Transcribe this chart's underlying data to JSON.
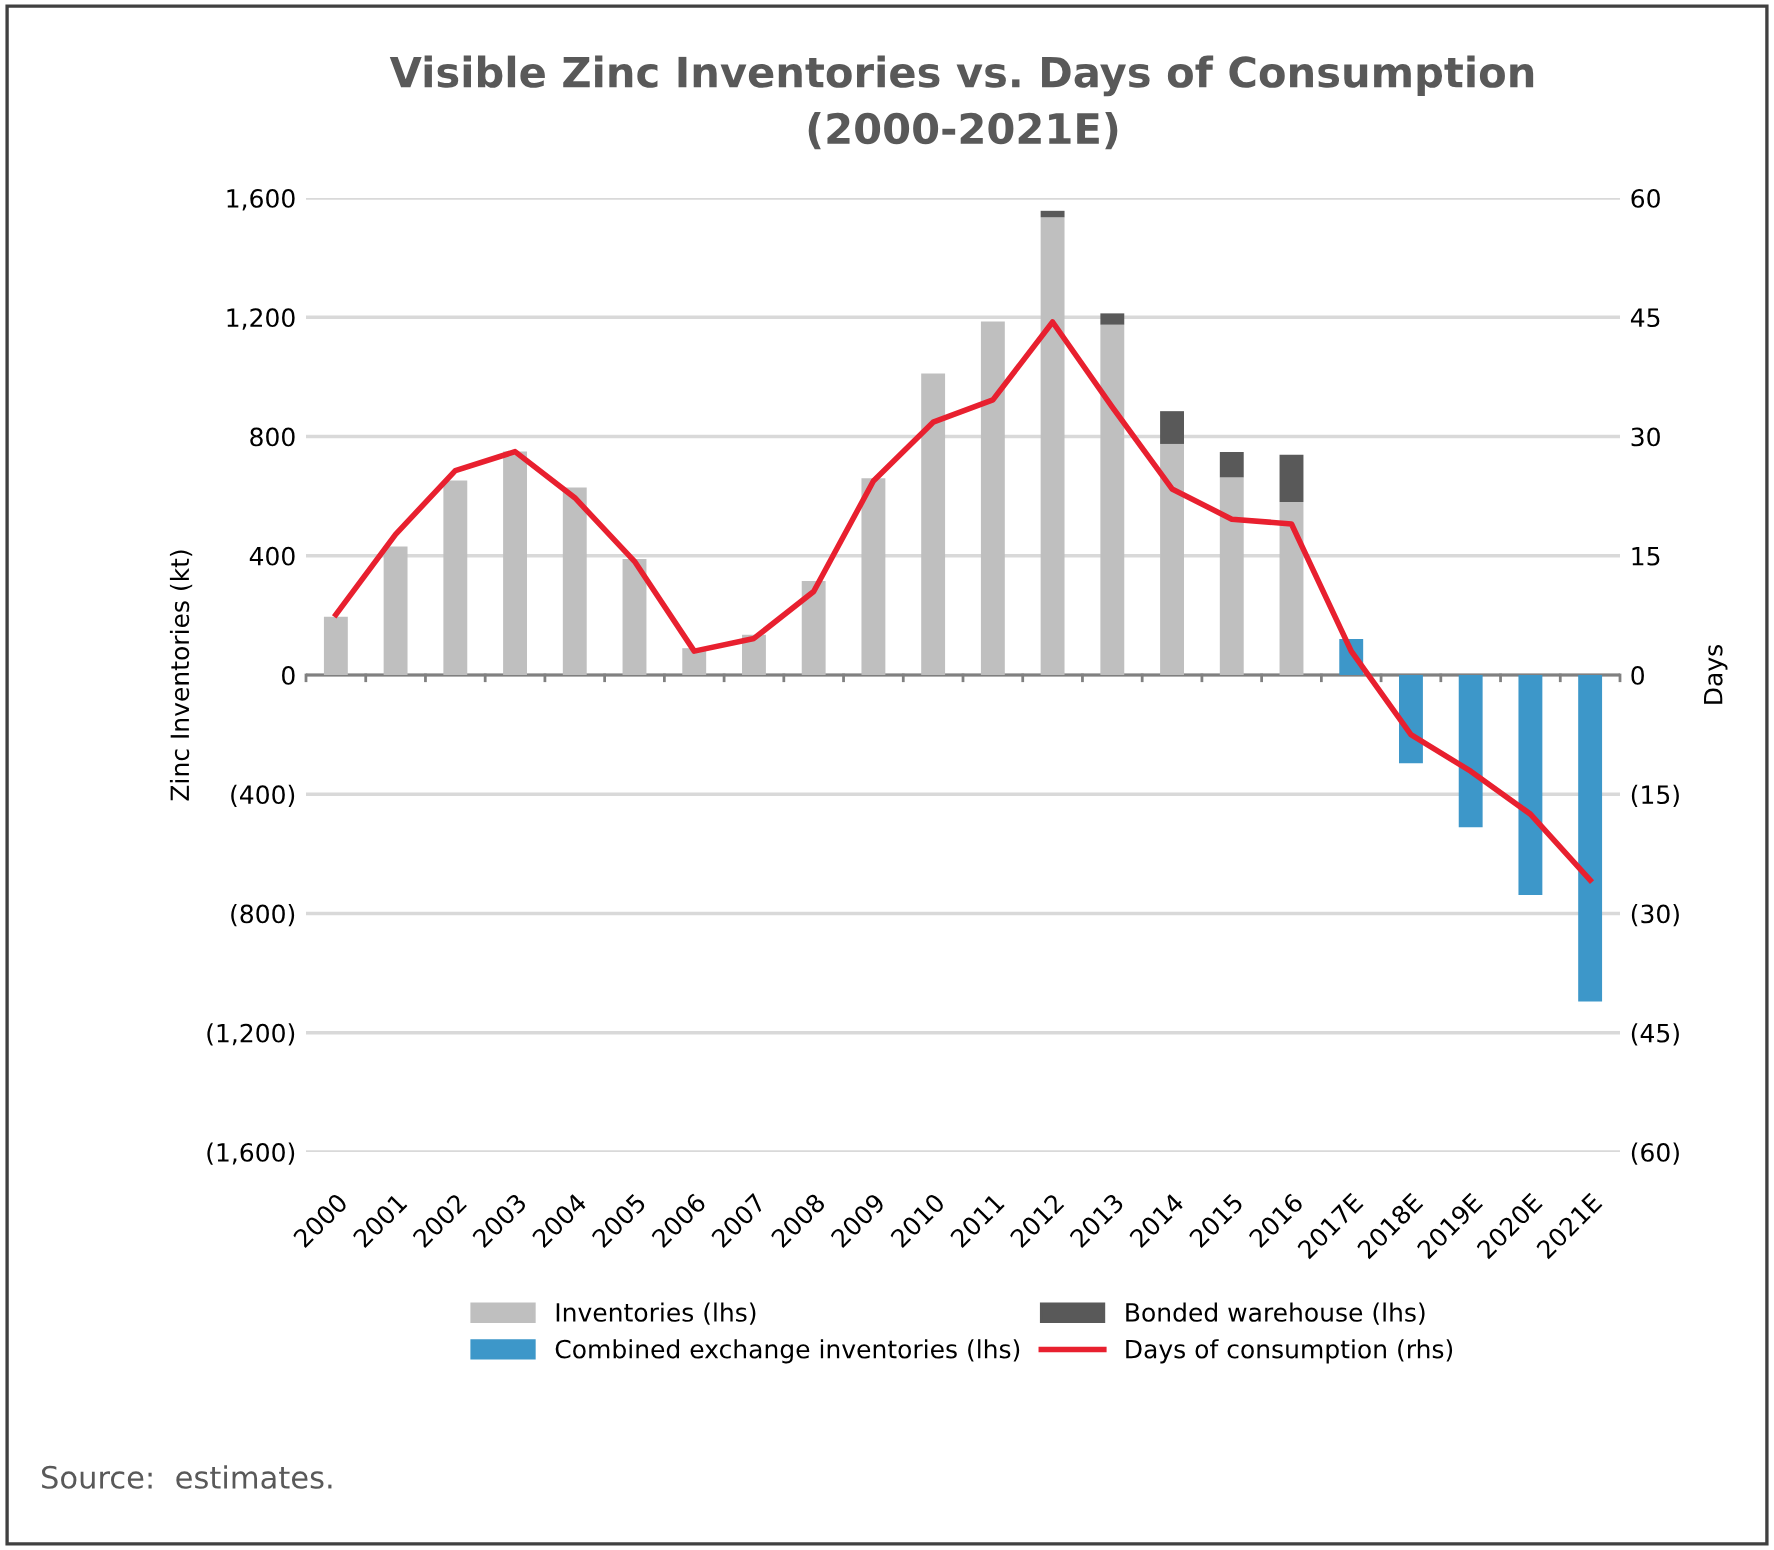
{
  "chart_data": {
    "type": "bar",
    "stacked": true,
    "title": "Visible Zinc Inventories vs. Days of Consumption\n(2000-2021E)",
    "ylabel": "Zinc Inventories (kt)",
    "y2label": "Days",
    "categories": [
      "2000",
      "2001",
      "2002",
      "2003",
      "2004",
      "2005",
      "2006",
      "2007",
      "2008",
      "2009",
      "2010",
      "2011",
      "2012",
      "2013",
      "2014",
      "2015",
      "2016",
      "2017E",
      "2018E",
      "2019E",
      "2020E",
      "2021E"
    ],
    "series": [
      {
        "name": "Inventories (lhs)",
        "color": "#bfbfbf",
        "values": [
          195,
          431,
          652,
          750,
          629,
          389,
          90,
          135,
          315,
          660,
          1011,
          1186,
          1535,
          1175,
          775,
          663,
          580,
          null,
          null,
          null,
          null,
          null
        ]
      },
      {
        "name": "Bonded warehouse (lhs)",
        "color": "#595959",
        "values": [
          null,
          null,
          null,
          null,
          null,
          null,
          null,
          null,
          null,
          null,
          null,
          null,
          22,
          38,
          110,
          85,
          159,
          null,
          null,
          null,
          null,
          null
        ]
      },
      {
        "name": "Combined exchange inventories (lhs)",
        "color": "#3d97c9",
        "values": [
          null,
          null,
          null,
          null,
          null,
          null,
          null,
          null,
          null,
          null,
          null,
          null,
          null,
          null,
          null,
          null,
          null,
          121,
          -296,
          -511,
          -738,
          -1095
        ]
      },
      {
        "name": "Days of consumption (rhs)",
        "color": "#e8202f",
        "type": "line",
        "axis": "y2",
        "values": [
          7.6,
          17.7,
          25.7,
          28.1,
          22.3,
          14.3,
          3.0,
          4.6,
          10.5,
          24.4,
          31.8,
          34.6,
          44.4,
          33.7,
          23.4,
          19.6,
          19.0,
          3.0,
          -7.5,
          -12.1,
          -17.5,
          -25.8
        ]
      }
    ],
    "ylim": [
      -1600,
      1600
    ],
    "yticks": [
      {
        "value": -1600,
        "label": "(1,600)"
      },
      {
        "value": -1200,
        "label": "(1,200)"
      },
      {
        "value": -800,
        "label": "(800)"
      },
      {
        "value": -400,
        "label": "(400)"
      },
      0,
      400,
      800,
      {
        "value": 1200,
        "label": "1,200"
      },
      {
        "value": 1600,
        "label": "1,600"
      }
    ],
    "y2lim": [
      -60,
      60
    ],
    "y2ticks": [
      {
        "value": -60,
        "label": "(60)"
      },
      {
        "value": -45,
        "label": "(45)"
      },
      {
        "value": -30,
        "label": "(30)"
      },
      {
        "value": -15,
        "label": "(15)"
      },
      0,
      15,
      30,
      45,
      60
    ],
    "grid": "y",
    "legend": "bottom",
    "marker": "none",
    "line_style": "solid",
    "annotations": [
      "Source:  estimates."
    ]
  }
}
